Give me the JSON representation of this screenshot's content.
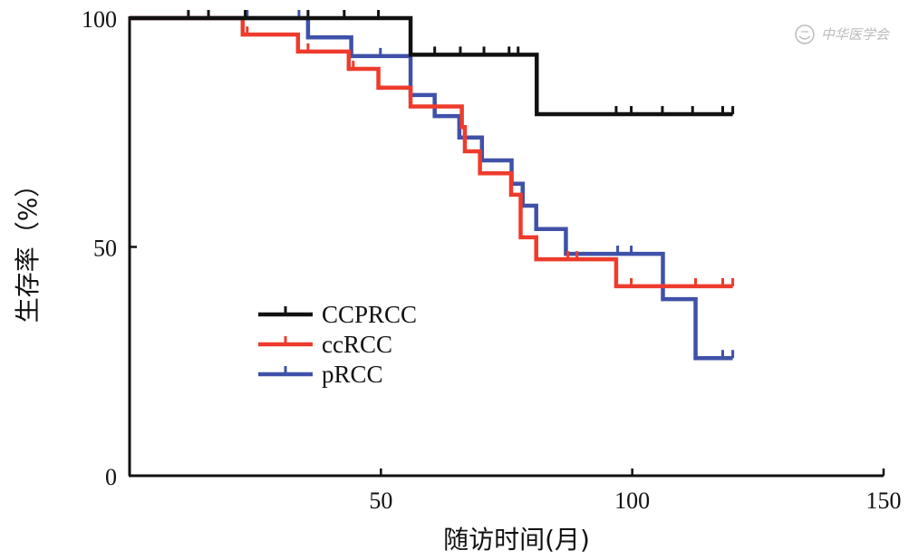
{
  "chart_data": {
    "type": "line",
    "subtype": "kaplan-meier step",
    "xlabel": "随访时间(月)",
    "ylabel": "生存率（%）",
    "xlim": [
      0,
      150
    ],
    "ylim": [
      0,
      100
    ],
    "xticks": [
      "50",
      "100",
      "150"
    ],
    "yticks": [
      "0",
      "50",
      "100"
    ],
    "xtick_values": [
      50,
      100,
      150
    ],
    "ytick_values": [
      0,
      50,
      100
    ],
    "legend_position": "center-left",
    "watermark": "中华医学会",
    "series": [
      {
        "name": "CCPRCC",
        "color": "#111111",
        "steps": [
          [
            0,
            100
          ],
          [
            55.9,
            92
          ],
          [
            81,
            79
          ]
        ],
        "end": 120,
        "censored": [
          [
            11.7,
            100
          ],
          [
            15.7,
            100
          ],
          [
            23,
            100
          ],
          [
            35.5,
            100
          ],
          [
            42.7,
            100
          ],
          [
            49.5,
            100
          ],
          [
            60.7,
            92
          ],
          [
            65.8,
            92
          ],
          [
            70.5,
            92
          ],
          [
            75.5,
            92
          ],
          [
            77.3,
            92
          ],
          [
            96.8,
            79
          ],
          [
            99.8,
            79
          ],
          [
            106,
            79
          ],
          [
            112,
            79
          ],
          [
            118,
            79
          ],
          [
            120,
            79
          ]
        ]
      },
      {
        "name": "ccRCC",
        "color": "#ee3b2c",
        "steps": [
          [
            0,
            100
          ],
          [
            22.5,
            96.4
          ],
          [
            33.5,
            92.7
          ],
          [
            43.6,
            88.9
          ],
          [
            49.5,
            84.8
          ],
          [
            55.9,
            80.7
          ],
          [
            66.1,
            76.2
          ],
          [
            66.7,
            70.9
          ],
          [
            69.7,
            66.1
          ],
          [
            75.9,
            61.4
          ],
          [
            77.8,
            52.1
          ],
          [
            80.9,
            47.3
          ],
          [
            96.8,
            41.4
          ]
        ],
        "end": 120,
        "censored": [
          [
            23.4,
            96.4
          ],
          [
            35.5,
            92.7
          ],
          [
            44.5,
            88.9
          ],
          [
            87.2,
            47.3
          ],
          [
            89,
            47.3
          ],
          [
            99.8,
            41.4
          ],
          [
            112.6,
            41.4
          ],
          [
            118,
            41.4
          ],
          [
            120,
            41.4
          ]
        ]
      },
      {
        "name": "pRCC",
        "color": "#3f51a8",
        "steps": [
          [
            0,
            100
          ],
          [
            35.5,
            95.8
          ],
          [
            44.1,
            91.7
          ],
          [
            55.9,
            83.2
          ],
          [
            60.7,
            78.6
          ],
          [
            65.6,
            73.9
          ],
          [
            70.1,
            68.9
          ],
          [
            76,
            63.8
          ],
          [
            78.2,
            59
          ],
          [
            80.9,
            53.9
          ],
          [
            86.8,
            48.5
          ],
          [
            106.1,
            38.6
          ],
          [
            112.6,
            25.7
          ]
        ],
        "end": 120,
        "censored": [
          [
            23.4,
            100
          ],
          [
            33.7,
            100
          ],
          [
            49.9,
            91.7
          ],
          [
            97.1,
            48.5
          ],
          [
            99.8,
            48.5
          ],
          [
            118,
            25.7
          ],
          [
            120,
            25.7
          ]
        ]
      }
    ]
  }
}
